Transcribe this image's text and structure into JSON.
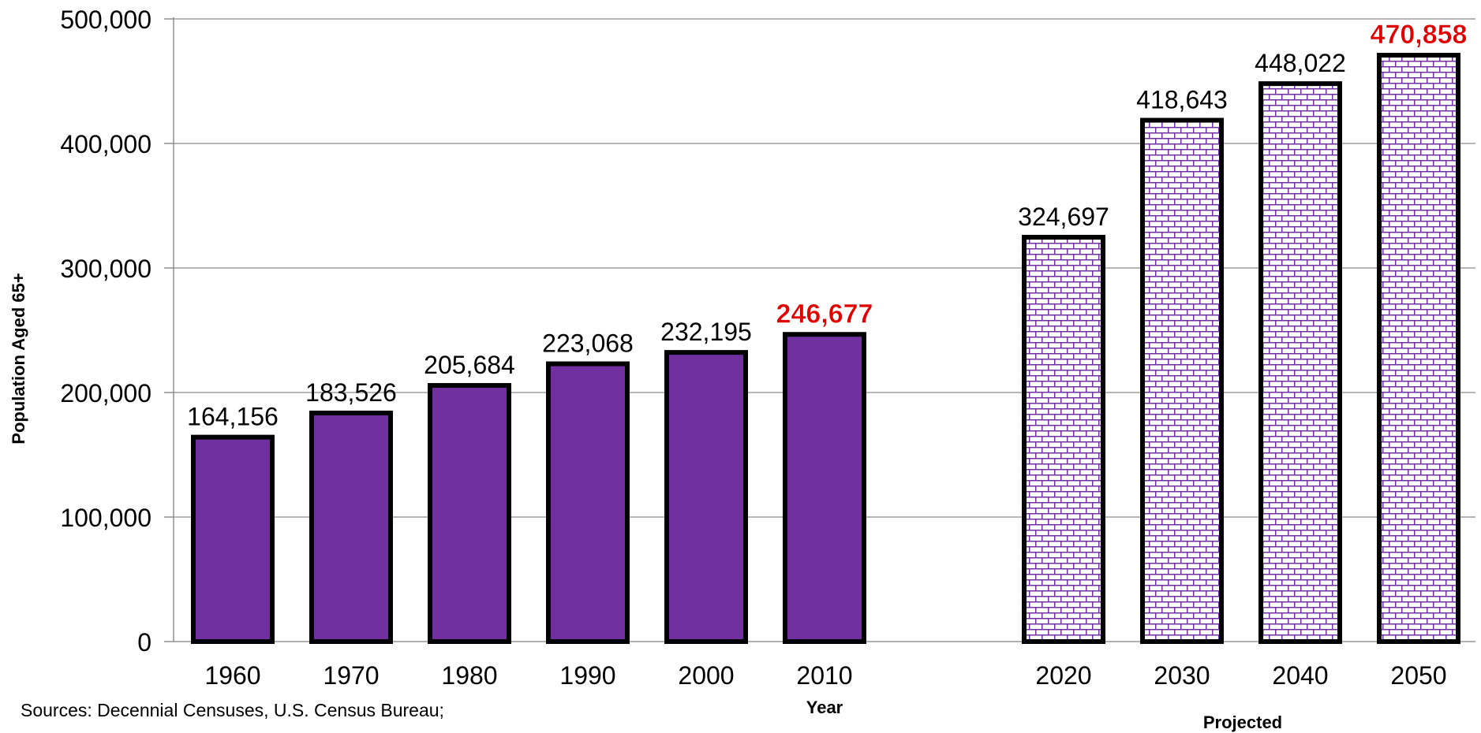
{
  "chart_data": {
    "type": "bar",
    "title": "",
    "xlabel": "Year",
    "ylabel": "Population Aged 65+",
    "ylim": [
      0,
      500000
    ],
    "yticks": [
      "0",
      "100,000",
      "200,000",
      "300,000",
      "400,000",
      "500,000"
    ],
    "ytick_values": [
      0,
      100000,
      200000,
      300000,
      400000,
      500000
    ],
    "grid": true,
    "categories": [
      "1960",
      "1970",
      "1980",
      "1990",
      "2000",
      "2010",
      "2020",
      "2030",
      "2040",
      "2050"
    ],
    "values": [
      164156,
      183526,
      205684,
      223068,
      232195,
      246677,
      324697,
      418643,
      448022,
      470858
    ],
    "value_labels": [
      "164,156",
      "183,526",
      "205,684",
      "223,068",
      "232,195",
      "246,677",
      "324,697",
      "418,643",
      "448,022",
      "470,858"
    ],
    "projected": [
      false,
      false,
      false,
      false,
      false,
      false,
      true,
      true,
      true,
      true
    ],
    "highlighted": [
      false,
      false,
      false,
      false,
      false,
      true,
      false,
      false,
      false,
      true
    ],
    "projected_label": "Projected",
    "colors": {
      "bar_fill": "#7030A0",
      "pattern_line": "#7030A0",
      "pattern_bg": "#ffffff",
      "bar_outline": "#000000",
      "highlight_label": "#e00000",
      "grid": "#8c8c8c"
    }
  },
  "source_note": "Sources: Decennial Censuses, U.S. Census Bureau;"
}
